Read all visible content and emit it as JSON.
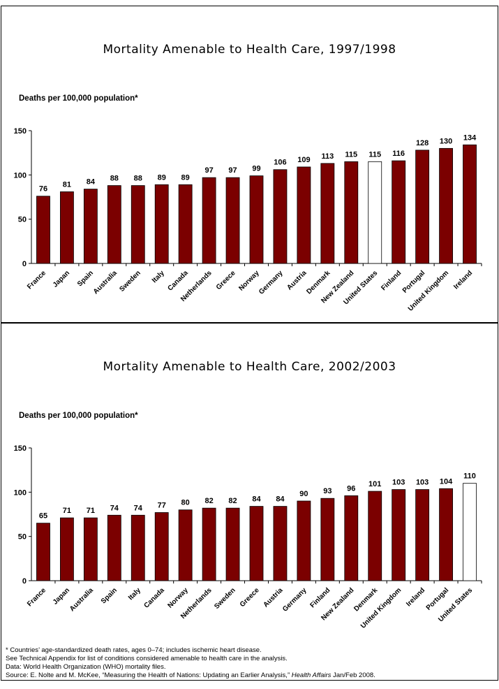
{
  "chart_data": [
    {
      "type": "bar",
      "title": "Mortality Amenable to Health Care, 1997/1998",
      "ylabel": "Deaths per 100,000 population*",
      "ylim": [
        0,
        150
      ],
      "yticks": [
        0,
        50,
        100,
        150
      ],
      "grid": false,
      "categories": [
        "France",
        "Japan",
        "Spain",
        "Australia",
        "Sweden",
        "Italy",
        "Canada",
        "Netherlands",
        "Greece",
        "Norway",
        "Germany",
        "Austria",
        "Denmark",
        "New Zealand",
        "United States",
        "Finland",
        "Portugal",
        "United Kingdom",
        "Ireland"
      ],
      "values": [
        76,
        81,
        84,
        88,
        88,
        89,
        89,
        97,
        97,
        99,
        106,
        109,
        113,
        115,
        115,
        116,
        128,
        130,
        134
      ],
      "bar_color": "#7b0000",
      "highlight": {
        "category": "United States",
        "color": "#ffffff"
      }
    },
    {
      "type": "bar",
      "title": "Mortality Amenable to Health Care, 2002/2003",
      "ylabel": "Deaths per 100,000 population*",
      "ylim": [
        0,
        150
      ],
      "yticks": [
        0,
        50,
        100,
        150
      ],
      "grid": false,
      "categories": [
        "France",
        "Japan",
        "Australia",
        "Spain",
        "Italy",
        "Canada",
        "Norway",
        "Netherlands",
        "Sweden",
        "Greece",
        "Austria",
        "Germany",
        "Finland",
        "New Zealand",
        "Denmark",
        "United Kingdom",
        "Ireland",
        "Portugal",
        "United States"
      ],
      "values": [
        65,
        71,
        71,
        74,
        74,
        77,
        80,
        82,
        82,
        84,
        84,
        90,
        93,
        96,
        101,
        103,
        103,
        104,
        110
      ],
      "bar_color": "#7b0000",
      "highlight": {
        "category": "United States",
        "color": "#ffffff"
      }
    }
  ],
  "footnotes": {
    "line1": "* Countries’ age-standardized death rates, ages 0–74; includes ischemic heart disease.",
    "line2": "See Technical Appendix for list of conditions considered amenable to health care in the analysis.",
    "line3": "Data: World Health Organization (WHO) mortality files.",
    "line4_prefix": "Source: E. Nolte and M. McKee, “Measuring the Health of Nations: Updating an Earlier Analysis,” ",
    "line4_journal": "Health Affairs",
    "line4_suffix": " Jan/Feb 2008."
  }
}
